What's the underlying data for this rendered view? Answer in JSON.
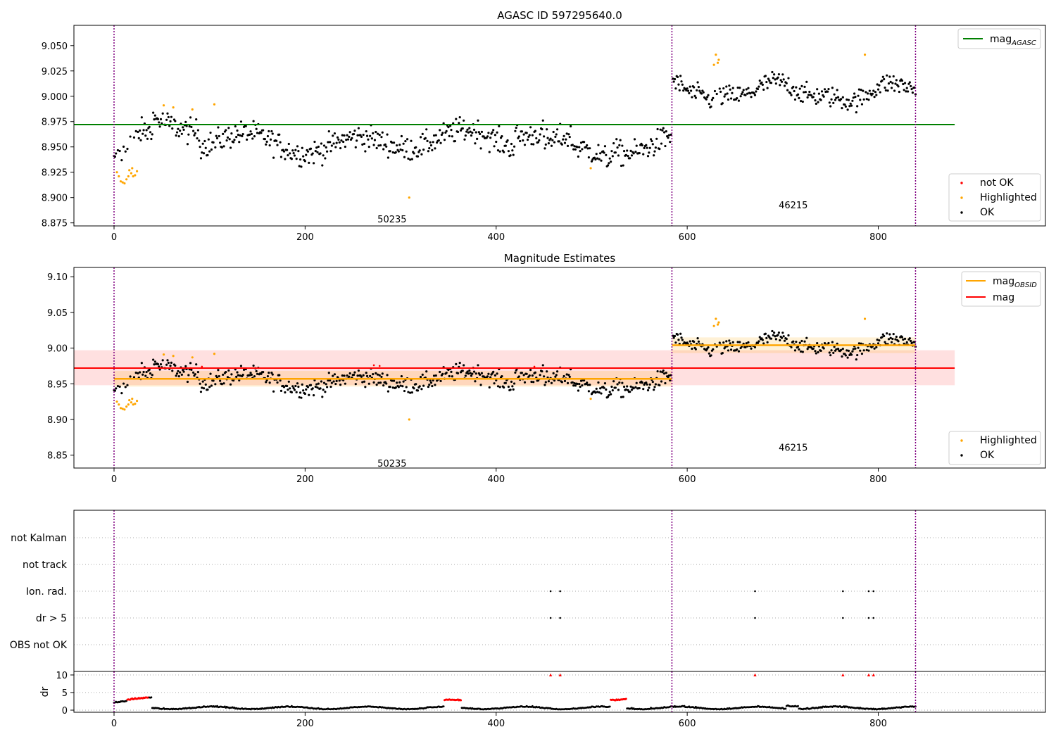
{
  "chart_data": [
    {
      "type": "scatter",
      "title": "AGASC ID 597295640.0",
      "xlabel": "",
      "ylabel": "",
      "xlim": [
        -42,
        975
      ],
      "ylim": [
        8.872,
        9.07
      ],
      "xticks": [
        0,
        200,
        400,
        600,
        800
      ],
      "yticks": [
        8.875,
        8.9,
        8.925,
        8.95,
        8.975,
        9.0,
        9.025,
        9.05
      ],
      "ytick_labels": [
        "8.875",
        "8.900",
        "8.925",
        "8.950",
        "8.975",
        "9.000",
        "9.025",
        "9.050"
      ],
      "obsid_boundaries": [
        0,
        584,
        839
      ],
      "obsid_labels": [
        {
          "text": "50235",
          "x": 291,
          "y": 8.879
        },
        {
          "text": "46215",
          "x": 711,
          "y": 8.893
        }
      ],
      "reference_lines": [
        {
          "name": "mag_AGASC",
          "name_main": "mag",
          "name_sub": "AGASC",
          "y": 8.972,
          "x": [
            -42,
            880
          ],
          "color": "#008000"
        }
      ],
      "segments": [
        {
          "x": [
            0,
            584
          ],
          "mean": 8.955,
          "amp": 0.008,
          "noise": 0.012
        },
        {
          "x": [
            584,
            839
          ],
          "mean": 9.004,
          "amp": 0.008,
          "noise": 0.01
        }
      ],
      "highlighted": [
        {
          "x": 3,
          "y": 8.925
        },
        {
          "x": 5,
          "y": 8.921
        },
        {
          "x": 7,
          "y": 8.916
        },
        {
          "x": 9,
          "y": 8.915
        },
        {
          "x": 11,
          "y": 8.914
        },
        {
          "x": 13,
          "y": 8.918
        },
        {
          "x": 15,
          "y": 8.921
        },
        {
          "x": 16,
          "y": 8.927
        },
        {
          "x": 18,
          "y": 8.924
        },
        {
          "x": 19,
          "y": 8.929
        },
        {
          "x": 20,
          "y": 8.921
        },
        {
          "x": 22,
          "y": 8.922
        },
        {
          "x": 24,
          "y": 8.926
        },
        {
          "x": 52,
          "y": 8.991
        },
        {
          "x": 62,
          "y": 8.989
        },
        {
          "x": 82,
          "y": 8.987
        },
        {
          "x": 105,
          "y": 8.992
        },
        {
          "x": 309,
          "y": 8.9
        },
        {
          "x": 499,
          "y": 8.929
        },
        {
          "x": 628,
          "y": 9.031
        },
        {
          "x": 630,
          "y": 9.041
        },
        {
          "x": 632,
          "y": 9.033
        },
        {
          "x": 633,
          "y": 9.036
        },
        {
          "x": 786,
          "y": 9.041
        }
      ],
      "legend": {
        "upper_right": [
          "mag_AGASC"
        ],
        "lower_right": [
          {
            "label": "not OK",
            "color": "#ff0000"
          },
          {
            "label": "Highlighted",
            "color": "#ffa500"
          },
          {
            "label": "OK",
            "color": "#000000"
          }
        ]
      }
    },
    {
      "type": "scatter",
      "title": "Magnitude Estimates",
      "xlabel": "",
      "ylabel": "",
      "xlim": [
        -42,
        975
      ],
      "ylim": [
        8.832,
        9.113
      ],
      "xticks": [
        0,
        200,
        400,
        600,
        800
      ],
      "yticks": [
        8.85,
        8.9,
        8.95,
        9.0,
        9.05,
        9.1
      ],
      "ytick_labels": [
        "8.85",
        "8.90",
        "8.95",
        "9.00",
        "9.05",
        "9.10"
      ],
      "obsid_boundaries": [
        0,
        584,
        839
      ],
      "obsid_labels": [
        {
          "text": "50235",
          "x": 291,
          "y": 8.839
        },
        {
          "text": "46215",
          "x": 711,
          "y": 8.861
        }
      ],
      "reference_lines": [
        {
          "name": "mag",
          "y": 8.972,
          "x": [
            -42,
            880
          ],
          "color": "#ff0000",
          "band": [
            8.948,
            8.997
          ]
        }
      ],
      "obsid_mags": [
        {
          "x": [
            0,
            584
          ],
          "y": 8.957,
          "band": [
            8.946,
            8.968
          ]
        },
        {
          "x": [
            584,
            839
          ],
          "y": 9.004,
          "band": [
            8.993,
            9.015
          ]
        }
      ],
      "legend": {
        "upper_right": [
          {
            "label": "mag_OBSID",
            "main": "mag",
            "sub": "OBSID",
            "color": "#ffa500"
          },
          {
            "label": "mag",
            "color": "#ff0000"
          }
        ],
        "lower_right": [
          {
            "label": "Highlighted",
            "color": "#ffa500"
          },
          {
            "label": "OK",
            "color": "#000000"
          }
        ]
      }
    },
    {
      "type": "scatter",
      "title": "",
      "xlim": [
        -42,
        975
      ],
      "categories": [
        "not Kalman",
        "not track",
        "Ion. rad.",
        "dr > 5",
        "OBS not OK"
      ],
      "flag_points": {
        "Ion. rad.": [
          457,
          467,
          671,
          763,
          790,
          795
        ],
        "dr > 5": [
          457,
          467,
          671,
          763,
          790,
          795
        ]
      },
      "obsid_boundaries": [
        0,
        584,
        839
      ]
    },
    {
      "type": "scatter",
      "ylabel": "dr",
      "xlim": [
        -42,
        975
      ],
      "ylim": [
        -0.6,
        11
      ],
      "xticks": [
        0,
        200,
        400,
        600,
        800
      ],
      "yticks": [
        0,
        5,
        10
      ],
      "red_runs": [
        {
          "x": [
            14,
            36
          ],
          "y": [
            3.0,
            3.6
          ]
        },
        {
          "x": [
            346,
            363
          ],
          "y": [
            2.9,
            2.9
          ]
        },
        {
          "x": [
            520,
            536
          ],
          "y": [
            2.9,
            3.1
          ]
        }
      ],
      "red_markers_at_10": [
        457,
        467,
        671,
        763,
        790,
        795
      ],
      "obsid_boundaries": [
        0,
        584,
        839
      ]
    }
  ],
  "colors": {
    "ok": "#000000",
    "highlighted": "#ffa500",
    "not_ok": "#ff0000",
    "agasc_line": "#008000",
    "obsid_divider": "#800080"
  }
}
